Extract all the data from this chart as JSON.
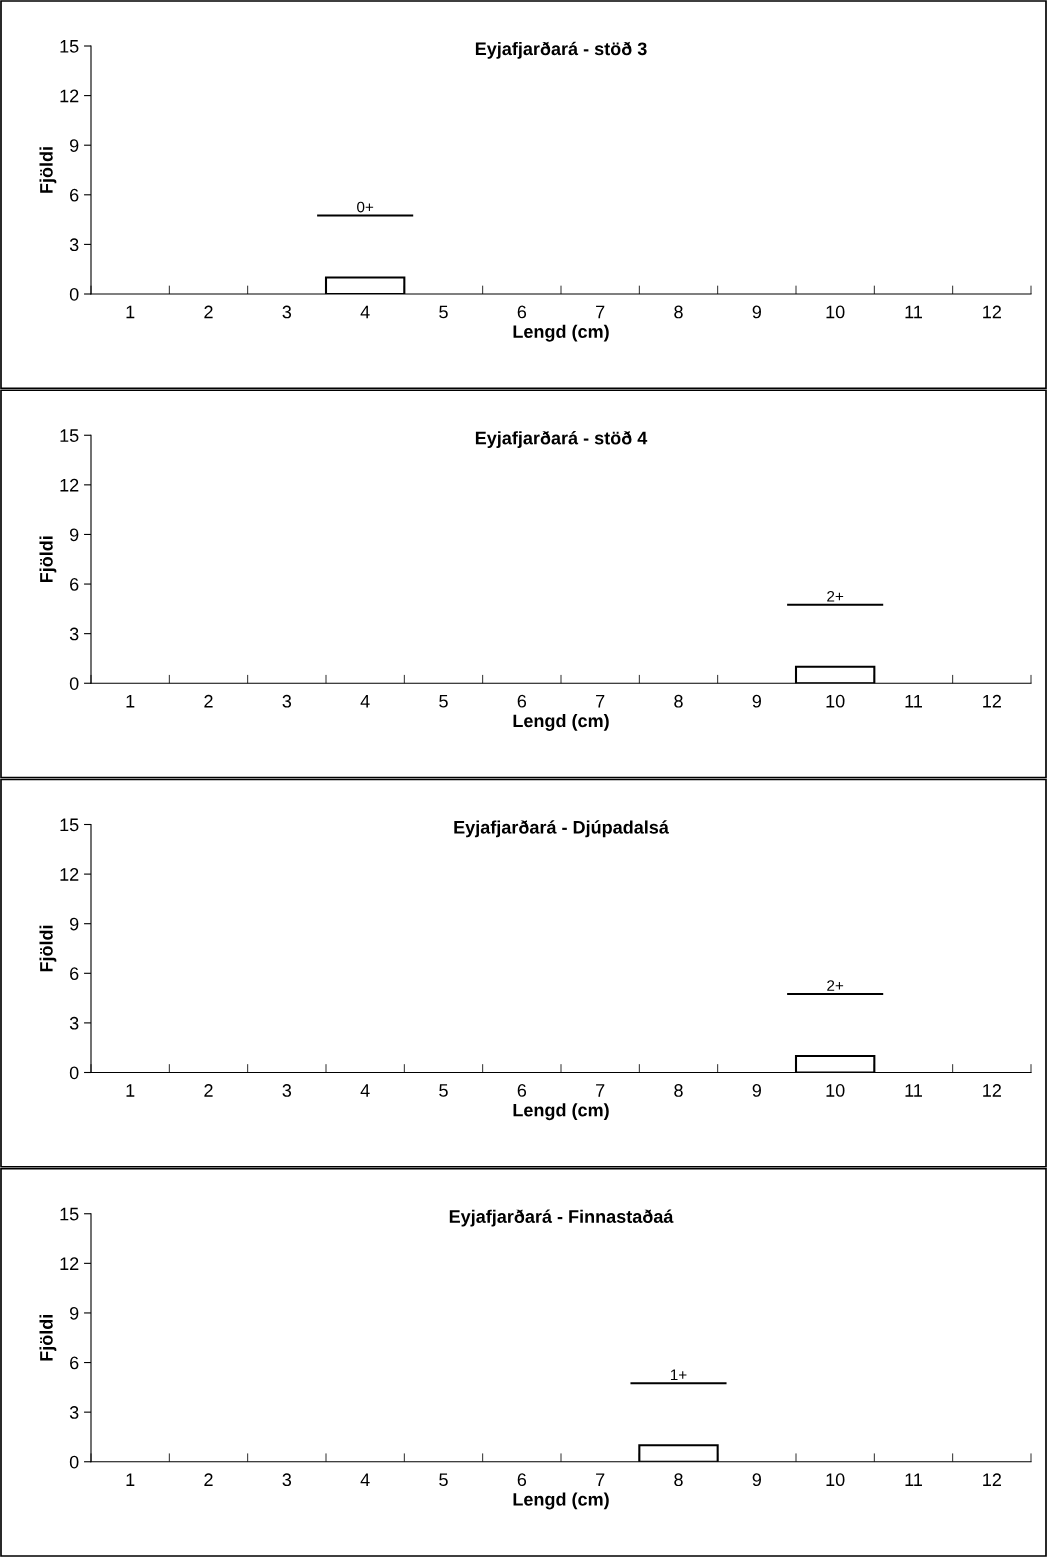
{
  "chart_data": [
    {
      "type": "bar",
      "title": "Eyjafjarðará - stöð 3",
      "xlabel": "Lengd (cm)",
      "ylabel": "Fjöldi",
      "categories": [
        "1",
        "2",
        "3",
        "4",
        "5",
        "6",
        "7",
        "8",
        "9",
        "10",
        "11",
        "12"
      ],
      "values": [
        0,
        0,
        0,
        1,
        0,
        0,
        0,
        0,
        0,
        0,
        0,
        0
      ],
      "color": "#ffffff",
      "ylim": [
        0,
        15
      ],
      "yticks": [
        0,
        3,
        6,
        9,
        12,
        15
      ],
      "grid": false,
      "annotations": [
        "0+"
      ]
    },
    {
      "type": "bar",
      "title": "Eyjafjarðará - stöð 4",
      "xlabel": "Lengd (cm)",
      "ylabel": "Fjöldi",
      "categories": [
        "1",
        "2",
        "3",
        "4",
        "5",
        "6",
        "7",
        "8",
        "9",
        "10",
        "11",
        "12"
      ],
      "values": [
        0,
        0,
        0,
        0,
        0,
        0,
        0,
        0,
        0,
        1,
        0,
        0
      ],
      "color": "#ffffff",
      "ylim": [
        0,
        15
      ],
      "yticks": [
        0,
        3,
        6,
        9,
        12,
        15
      ],
      "grid": false,
      "annotations": [
        "2+"
      ]
    },
    {
      "type": "bar",
      "title": "Eyjafjarðará - Djúpadalsá",
      "xlabel": "Lengd (cm)",
      "ylabel": "Fjöldi",
      "categories": [
        "1",
        "2",
        "3",
        "4",
        "5",
        "6",
        "7",
        "8",
        "9",
        "10",
        "11",
        "12"
      ],
      "values": [
        0,
        0,
        0,
        0,
        0,
        0,
        0,
        0,
        0,
        1,
        0,
        0
      ],
      "color": "#ffffff",
      "ylim": [
        0,
        15
      ],
      "yticks": [
        0,
        3,
        6,
        9,
        12,
        15
      ],
      "grid": false,
      "annotations": [
        "2+"
      ]
    },
    {
      "type": "bar",
      "title": "Eyjafjarðará - Finnastaðaá",
      "xlabel": "Lengd (cm)",
      "ylabel": "Fjöldi",
      "categories": [
        "1",
        "2",
        "3",
        "4",
        "5",
        "6",
        "7",
        "8",
        "9",
        "10",
        "11",
        "12"
      ],
      "values": [
        0,
        0,
        0,
        0,
        0,
        0,
        0,
        1,
        0,
        0,
        0,
        0
      ],
      "color": "#ffffff",
      "ylim": [
        0,
        15
      ],
      "yticks": [
        0,
        3,
        6,
        9,
        12,
        15
      ],
      "grid": false,
      "annotations": [
        "1+"
      ]
    }
  ]
}
